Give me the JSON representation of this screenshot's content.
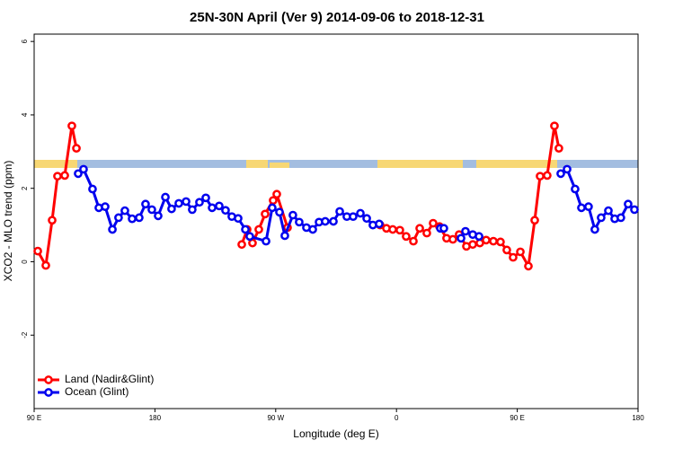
{
  "chart_data": {
    "type": "line",
    "title": "25N-30N April (Ver 9)   2014-09-06 to 2018-12-31",
    "xlabel": "Longitude (deg E)",
    "ylabel": "XCO2 - MLO trend (ppm)",
    "xlim": [
      90,
      540
    ],
    "xticks": [
      {
        "value": 90,
        "label": "90 E"
      },
      180,
      {
        "value": 270,
        "label": "90 W"
      },
      {
        "value": 360,
        "label": "0"
      },
      {
        "value": 450,
        "label": "90 E"
      },
      {
        "value": 540,
        "label": "180"
      }
    ],
    "ylim": [
      -4,
      6.2
    ],
    "yticks": [
      -2,
      0,
      2,
      4,
      6
    ],
    "legend": "bottom-left",
    "series": [
      {
        "name": "Land (Nadir&Glint)",
        "color": "#ff0000",
        "x": [
          92.7,
          98.7,
          103.4,
          107.4,
          112.8,
          118.1,
          121.5,
          null,
          244.7,
          248.7,
          252.7,
          257.4,
          262.1,
          268.1,
          270.8,
          278.8,
          null,
          347.8,
          352.5,
          357.2,
          362.5,
          367.2,
          372.6,
          377.3,
          382.6,
          387.3,
          392.0,
          397.3,
          402.0,
          406.7,
          412.1,
          416.8,
          422.1,
          426.8,
          432.2,
          437.5,
          442.2,
          446.9,
          452.3,
          458.3,
          463.0,
          467.0,
          472.3,
          477.7,
          481.0
        ],
        "values": [
          0.29,
          -0.1,
          1.13,
          2.33,
          2.35,
          3.7,
          3.09,
          null,
          0.47,
          0.88,
          0.51,
          0.88,
          1.3,
          1.67,
          1.84,
          0.93,
          null,
          1.0,
          0.91,
          0.88,
          0.86,
          0.69,
          0.56,
          0.91,
          0.78,
          1.05,
          0.96,
          0.64,
          0.61,
          0.74,
          0.42,
          0.47,
          0.51,
          0.59,
          0.56,
          0.54,
          0.32,
          0.12,
          0.27,
          -0.12,
          1.13,
          2.33,
          2.35,
          3.7,
          3.09
        ]
      },
      {
        "name": "Ocean (Glint)",
        "color": "#0000ee",
        "x": [
          122.8,
          126.8,
          133.5,
          138.2,
          142.9,
          148.3,
          152.9,
          157.6,
          163.0,
          168.3,
          173.0,
          177.7,
          182.4,
          187.8,
          192.4,
          197.8,
          203.2,
          207.8,
          213.2,
          217.9,
          222.6,
          227.9,
          232.6,
          237.3,
          242.0,
          247.4,
          250.7,
          262.8,
          267.4,
          272.8,
          276.8,
          282.8,
          287.5,
          292.9,
          297.6,
          302.3,
          306.9,
          313.0,
          317.7,
          323.0,
          327.7,
          333.1,
          337.8,
          342.4,
          347.1,
          null,
          392.7,
          395.3,
          null,
          408.1,
          411.4,
          416.8,
          421.5,
          null,
          482.4,
          487.1,
          493.1,
          497.8,
          503.1,
          507.8,
          512.5,
          517.9,
          522.6,
          527.2,
          532.6,
          537.3
        ],
        "values": [
          2.4,
          2.52,
          1.98,
          1.47,
          1.5,
          0.88,
          1.2,
          1.39,
          1.17,
          1.2,
          1.57,
          1.42,
          1.25,
          1.76,
          1.44,
          1.59,
          1.64,
          1.42,
          1.62,
          1.74,
          1.47,
          1.52,
          1.4,
          1.23,
          1.18,
          0.88,
          0.69,
          0.56,
          1.47,
          1.35,
          0.71,
          1.27,
          1.08,
          0.93,
          0.88,
          1.08,
          1.1,
          1.1,
          1.37,
          1.23,
          1.23,
          1.32,
          1.18,
          1.0,
          1.03,
          null,
          0.91,
          0.91,
          null,
          0.64,
          0.83,
          0.74,
          0.69,
          null,
          2.4,
          2.52,
          1.98,
          1.47,
          1.5,
          0.88,
          1.2,
          1.39,
          1.17,
          1.2,
          1.57,
          1.42
        ]
      }
    ]
  }
}
